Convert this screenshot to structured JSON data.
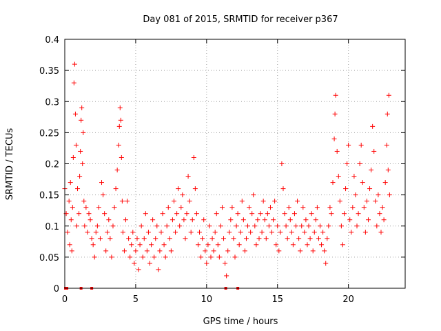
{
  "chart_data": {
    "type": "scatter",
    "title": "Day 081 of 2015, SRMTID for receiver p367",
    "xlabel": "GPS time / hours",
    "ylabel": "SRMTID / TECUs",
    "xlim": [
      0,
      24
    ],
    "ylim": [
      0,
      0.4
    ],
    "x_ticks": [
      0,
      5,
      10,
      15,
      20
    ],
    "y_ticks": [
      0,
      0.05,
      0.1,
      0.15,
      0.2,
      0.25,
      0.3,
      0.35,
      0.4
    ],
    "x_tick_labels": [
      "0",
      "5",
      "10",
      "15",
      "20"
    ],
    "y_tick_labels": [
      "0",
      "0.05",
      "0.1",
      "0.15",
      "0.2",
      "0.25",
      "0.3",
      "0.35",
      "0.4"
    ],
    "grid": true,
    "marker": "+",
    "color": "#ff0000",
    "series": [
      {
        "name": "SRMTID",
        "x": [
          0.0,
          0.1,
          0.2,
          0.3,
          0.35,
          0.4,
          0.45,
          0.5,
          0.55,
          0.6,
          0.65,
          0.7,
          0.75,
          0.8,
          0.85,
          0.9,
          1.0,
          1.05,
          1.1,
          1.15,
          1.2,
          1.25,
          1.3,
          1.35,
          1.4,
          1.5,
          1.6,
          1.7,
          1.8,
          1.9,
          2.0,
          2.1,
          2.2,
          2.3,
          2.4,
          2.5,
          2.6,
          2.7,
          2.8,
          2.9,
          3.0,
          3.1,
          3.2,
          3.3,
          3.4,
          3.5,
          3.6,
          3.7,
          3.8,
          3.85,
          3.9,
          3.95,
          4.0,
          4.05,
          4.1,
          4.2,
          4.3,
          4.4,
          4.5,
          4.6,
          4.7,
          4.8,
          4.9,
          5.0,
          5.1,
          5.2,
          5.3,
          5.4,
          5.5,
          5.6,
          5.7,
          5.8,
          5.9,
          6.0,
          6.1,
          6.2,
          6.3,
          6.4,
          6.5,
          6.6,
          6.7,
          6.8,
          6.9,
          7.0,
          7.1,
          7.2,
          7.3,
          7.4,
          7.5,
          7.6,
          7.7,
          7.8,
          7.9,
          8.0,
          8.1,
          8.2,
          8.3,
          8.4,
          8.5,
          8.6,
          8.7,
          8.8,
          8.9,
          9.0,
          9.1,
          9.2,
          9.3,
          9.4,
          9.5,
          9.6,
          9.7,
          9.8,
          9.9,
          10.0,
          10.1,
          10.2,
          10.3,
          10.4,
          10.5,
          10.6,
          10.7,
          10.8,
          10.9,
          11.0,
          11.1,
          11.2,
          11.3,
          11.4,
          11.5,
          11.6,
          11.7,
          11.8,
          11.9,
          12.0,
          12.1,
          12.2,
          12.3,
          12.4,
          12.5,
          12.6,
          12.7,
          12.8,
          12.9,
          13.0,
          13.1,
          13.2,
          13.3,
          13.4,
          13.5,
          13.6,
          13.7,
          13.8,
          13.9,
          14.0,
          14.1,
          14.2,
          14.3,
          14.4,
          14.5,
          14.6,
          14.7,
          14.8,
          14.9,
          15.0,
          15.1,
          15.2,
          15.3,
          15.4,
          15.5,
          15.6,
          15.7,
          15.8,
          15.9,
          16.0,
          16.1,
          16.2,
          16.3,
          16.4,
          16.5,
          16.6,
          16.7,
          16.8,
          16.9,
          17.0,
          17.1,
          17.2,
          17.3,
          17.4,
          17.5,
          17.6,
          17.7,
          17.8,
          17.9,
          18.0,
          18.1,
          18.2,
          18.3,
          18.4,
          18.5,
          18.6,
          18.7,
          18.8,
          18.9,
          19.0,
          19.05,
          19.1,
          19.2,
          19.3,
          19.4,
          19.5,
          19.6,
          19.7,
          19.8,
          19.9,
          20.0,
          20.1,
          20.2,
          20.3,
          20.4,
          20.5,
          20.6,
          20.7,
          20.8,
          20.9,
          21.0,
          21.1,
          21.2,
          21.3,
          21.4,
          21.5,
          21.6,
          21.7,
          21.8,
          21.9,
          22.0,
          22.1,
          22.2,
          22.3,
          22.4,
          22.5,
          22.6,
          22.7,
          22.75,
          22.8,
          22.85,
          22.9,
          0.05,
          0.15,
          1.15,
          1.9,
          11.35,
          12.2
        ],
        "y": [
          0.16,
          0.12,
          0.09,
          0.14,
          0.07,
          0.17,
          0.11,
          0.06,
          0.13,
          0.21,
          0.33,
          0.36,
          0.28,
          0.23,
          0.1,
          0.16,
          0.12,
          0.18,
          0.22,
          0.27,
          0.29,
          0.2,
          0.25,
          0.14,
          0.1,
          0.13,
          0.09,
          0.12,
          0.11,
          0.08,
          0.07,
          0.05,
          0.09,
          0.1,
          0.13,
          0.08,
          0.17,
          0.15,
          0.12,
          0.06,
          0.09,
          0.11,
          0.08,
          0.05,
          0.1,
          0.13,
          0.16,
          0.19,
          0.23,
          0.26,
          0.29,
          0.27,
          0.21,
          0.14,
          0.09,
          0.06,
          0.11,
          0.14,
          0.08,
          0.05,
          0.07,
          0.09,
          0.04,
          0.06,
          0.08,
          0.03,
          0.07,
          0.1,
          0.05,
          0.08,
          0.12,
          0.06,
          0.09,
          0.04,
          0.07,
          0.11,
          0.05,
          0.08,
          0.1,
          0.03,
          0.06,
          0.09,
          0.12,
          0.07,
          0.05,
          0.1,
          0.13,
          0.08,
          0.06,
          0.11,
          0.14,
          0.09,
          0.12,
          0.16,
          0.1,
          0.13,
          0.15,
          0.11,
          0.08,
          0.12,
          0.18,
          0.14,
          0.09,
          0.11,
          0.21,
          0.16,
          0.12,
          0.07,
          0.09,
          0.05,
          0.08,
          0.11,
          0.06,
          0.04,
          0.07,
          0.1,
          0.05,
          0.08,
          0.06,
          0.09,
          0.12,
          0.07,
          0.05,
          0.1,
          0.13,
          0.08,
          0.04,
          0.02,
          0.06,
          0.09,
          0.11,
          0.13,
          0.08,
          0.05,
          0.1,
          0.12,
          0.07,
          0.09,
          0.14,
          0.11,
          0.06,
          0.08,
          0.1,
          0.13,
          0.09,
          0.12,
          0.15,
          0.1,
          0.07,
          0.11,
          0.08,
          0.12,
          0.09,
          0.14,
          0.11,
          0.08,
          0.12,
          0.1,
          0.13,
          0.09,
          0.11,
          0.14,
          0.07,
          0.1,
          0.06,
          0.09,
          0.2,
          0.16,
          0.12,
          0.1,
          0.08,
          0.13,
          0.11,
          0.09,
          0.07,
          0.12,
          0.1,
          0.14,
          0.08,
          0.06,
          0.1,
          0.13,
          0.09,
          0.11,
          0.07,
          0.1,
          0.08,
          0.12,
          0.06,
          0.09,
          0.11,
          0.13,
          0.08,
          0.1,
          0.07,
          0.09,
          0.06,
          0.04,
          0.08,
          0.1,
          0.13,
          0.12,
          0.17,
          0.24,
          0.28,
          0.31,
          0.22,
          0.18,
          0.14,
          0.1,
          0.07,
          0.12,
          0.16,
          0.2,
          0.23,
          0.11,
          0.09,
          0.13,
          0.18,
          0.15,
          0.1,
          0.12,
          0.2,
          0.23,
          0.17,
          0.13,
          0.09,
          0.14,
          0.11,
          0.16,
          0.19,
          0.26,
          0.22,
          0.14,
          0.1,
          0.15,
          0.12,
          0.09,
          0.13,
          0.11,
          0.17,
          0.23,
          0.28,
          0.19,
          0.31,
          0.15,
          0.0,
          0.0,
          0.0,
          0.0,
          0.0,
          0.0
        ]
      }
    ]
  }
}
